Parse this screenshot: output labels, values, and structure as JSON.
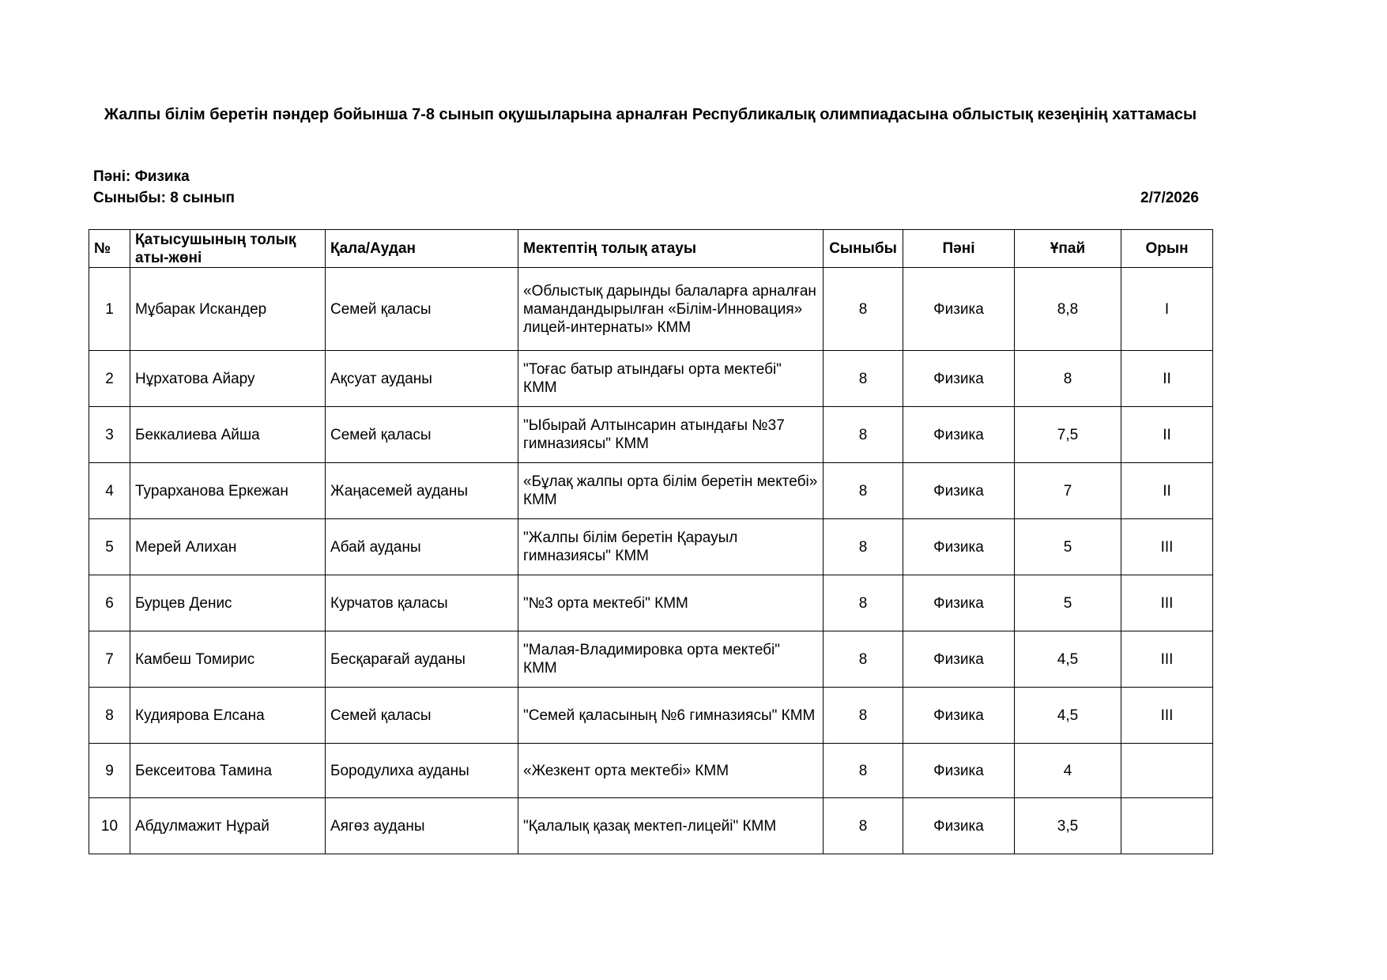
{
  "title": "Жалпы білім беретін пәндер бойынша 7-8 сынып оқушыларына арналған Республикалық олимпиадасына облыстық кезеңінің хаттамасы",
  "subject_line": "Пәні: Физика",
  "grade_line": "Сыныбы: 8 сынып",
  "date": "2/7/2026",
  "table": {
    "headers": [
      "№",
      "Қатысушының толық аты-жөні",
      "Қала/Аудан",
      "Мектептің толық атауы",
      "Сыныбы",
      "Пәні",
      "Ұпай",
      "Орын"
    ],
    "rows": [
      {
        "no": "1",
        "name": "Мұбарак Искандер",
        "city": "Семей қаласы",
        "school": " «Облыстық дарынды балаларға арналған мамандандырылған «Білім-Инновация» лицей-интернаты» КММ",
        "grade": "8",
        "subject": "Физика",
        "score": "8,8",
        "place": "I"
      },
      {
        "no": "2",
        "name": "Нұрхатова Айару",
        "city": "Ақсуат ауданы",
        "school": "\"Тоғас батыр атындағы орта мектебі\" КММ",
        "grade": "8",
        "subject": "Физика",
        "score": "8",
        "place": "II"
      },
      {
        "no": "3",
        "name": "Беккалиева Айша",
        "city": "Семей қаласы",
        "school": "\"Ыбырай Алтынсарин атындағы №37 гимназиясы\" КММ",
        "grade": "8",
        "subject": "Физика",
        "score": "7,5",
        "place": "II"
      },
      {
        "no": "4",
        "name": "Турарханова Еркежан",
        "city": "Жаңасемей ауданы",
        "school": "«Бұлақ жалпы орта білім беретін мектебі» КММ",
        "grade": "8",
        "subject": "Физика",
        "score": "7",
        "place": "II"
      },
      {
        "no": "5",
        "name": "Мерей Алихан",
        "city": "Абай ауданы",
        "school": "\"Жалпы білім беретін Қарауыл гимназиясы\" КММ",
        "grade": "8",
        "subject": "Физика",
        "score": "5",
        "place": "III"
      },
      {
        "no": "6",
        "name": "Бурцев Денис",
        "city": "Курчатов қаласы",
        "school": "\"№3 орта мектебі\" КММ",
        "grade": "8",
        "subject": "Физика",
        "score": "5",
        "place": "III"
      },
      {
        "no": "7",
        "name": "Камбеш Томирис",
        "city": "Бесқарағай ауданы",
        "school": "\"Малая-Владимировка орта мектебі\" КММ",
        "grade": "8",
        "subject": "Физика",
        "score": "4,5",
        "place": "III"
      },
      {
        "no": "8",
        "name": "Кудиярова Елсана",
        "city": "Семей қаласы",
        "school": "\"Семей қаласының №6 гимназиясы\" КММ",
        "grade": "8",
        "subject": "Физика",
        "score": "4,5",
        "place": "III"
      },
      {
        "no": "9",
        "name": "Бексеитова Тамина",
        "city": "Бородулиха ауданы",
        "school": "«Жезкент  орта мектебі» КММ",
        "grade": "8",
        "subject": "Физика",
        "score": "4",
        "place": ""
      },
      {
        "no": "10",
        "name": "Абдулмажит Нұрай",
        "city": "Аягөз ауданы",
        "school": "\"Қалалық қазақ мектеп-лицейі\" КММ",
        "grade": "8",
        "subject": "Физика",
        "score": "3,5",
        "place": ""
      }
    ]
  }
}
